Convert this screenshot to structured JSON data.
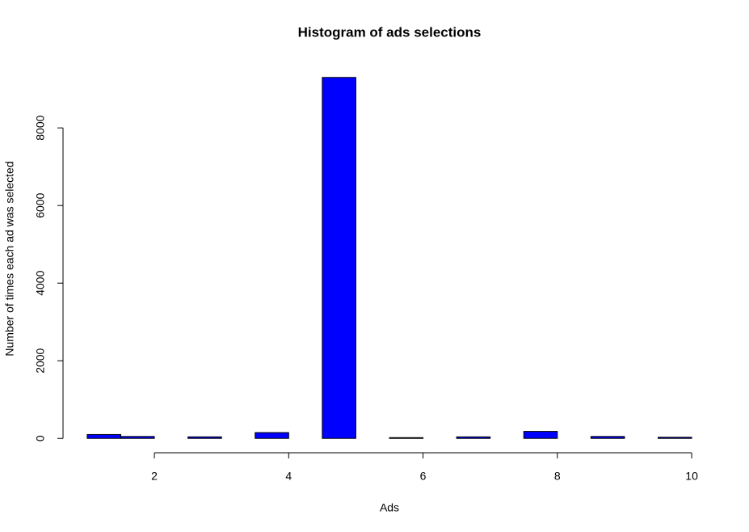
{
  "chart_data": {
    "type": "histogram",
    "title": "Histogram of ads selections",
    "x_label": "Ads",
    "y_label": "Number of times each ad was selected",
    "bins": [
      1,
      1.5,
      2,
      2.5,
      3,
      3.5,
      4,
      4.5,
      5,
      5.5,
      6,
      6.5,
      7,
      7.5,
      8,
      8.5,
      9,
      9.5,
      10
    ],
    "counts": [
      100,
      50,
      0,
      40,
      0,
      150,
      0,
      9300,
      0,
      20,
      0,
      40,
      0,
      180,
      0,
      50,
      0,
      30
    ],
    "color": "#0000ff",
    "xlim": [
      0.64,
      10.36
    ],
    "ylim": [
      -370,
      9670
    ],
    "xticks": [
      2,
      4,
      6,
      8,
      10
    ],
    "yticks": [
      0,
      2000,
      4000,
      6000,
      8000
    ]
  }
}
